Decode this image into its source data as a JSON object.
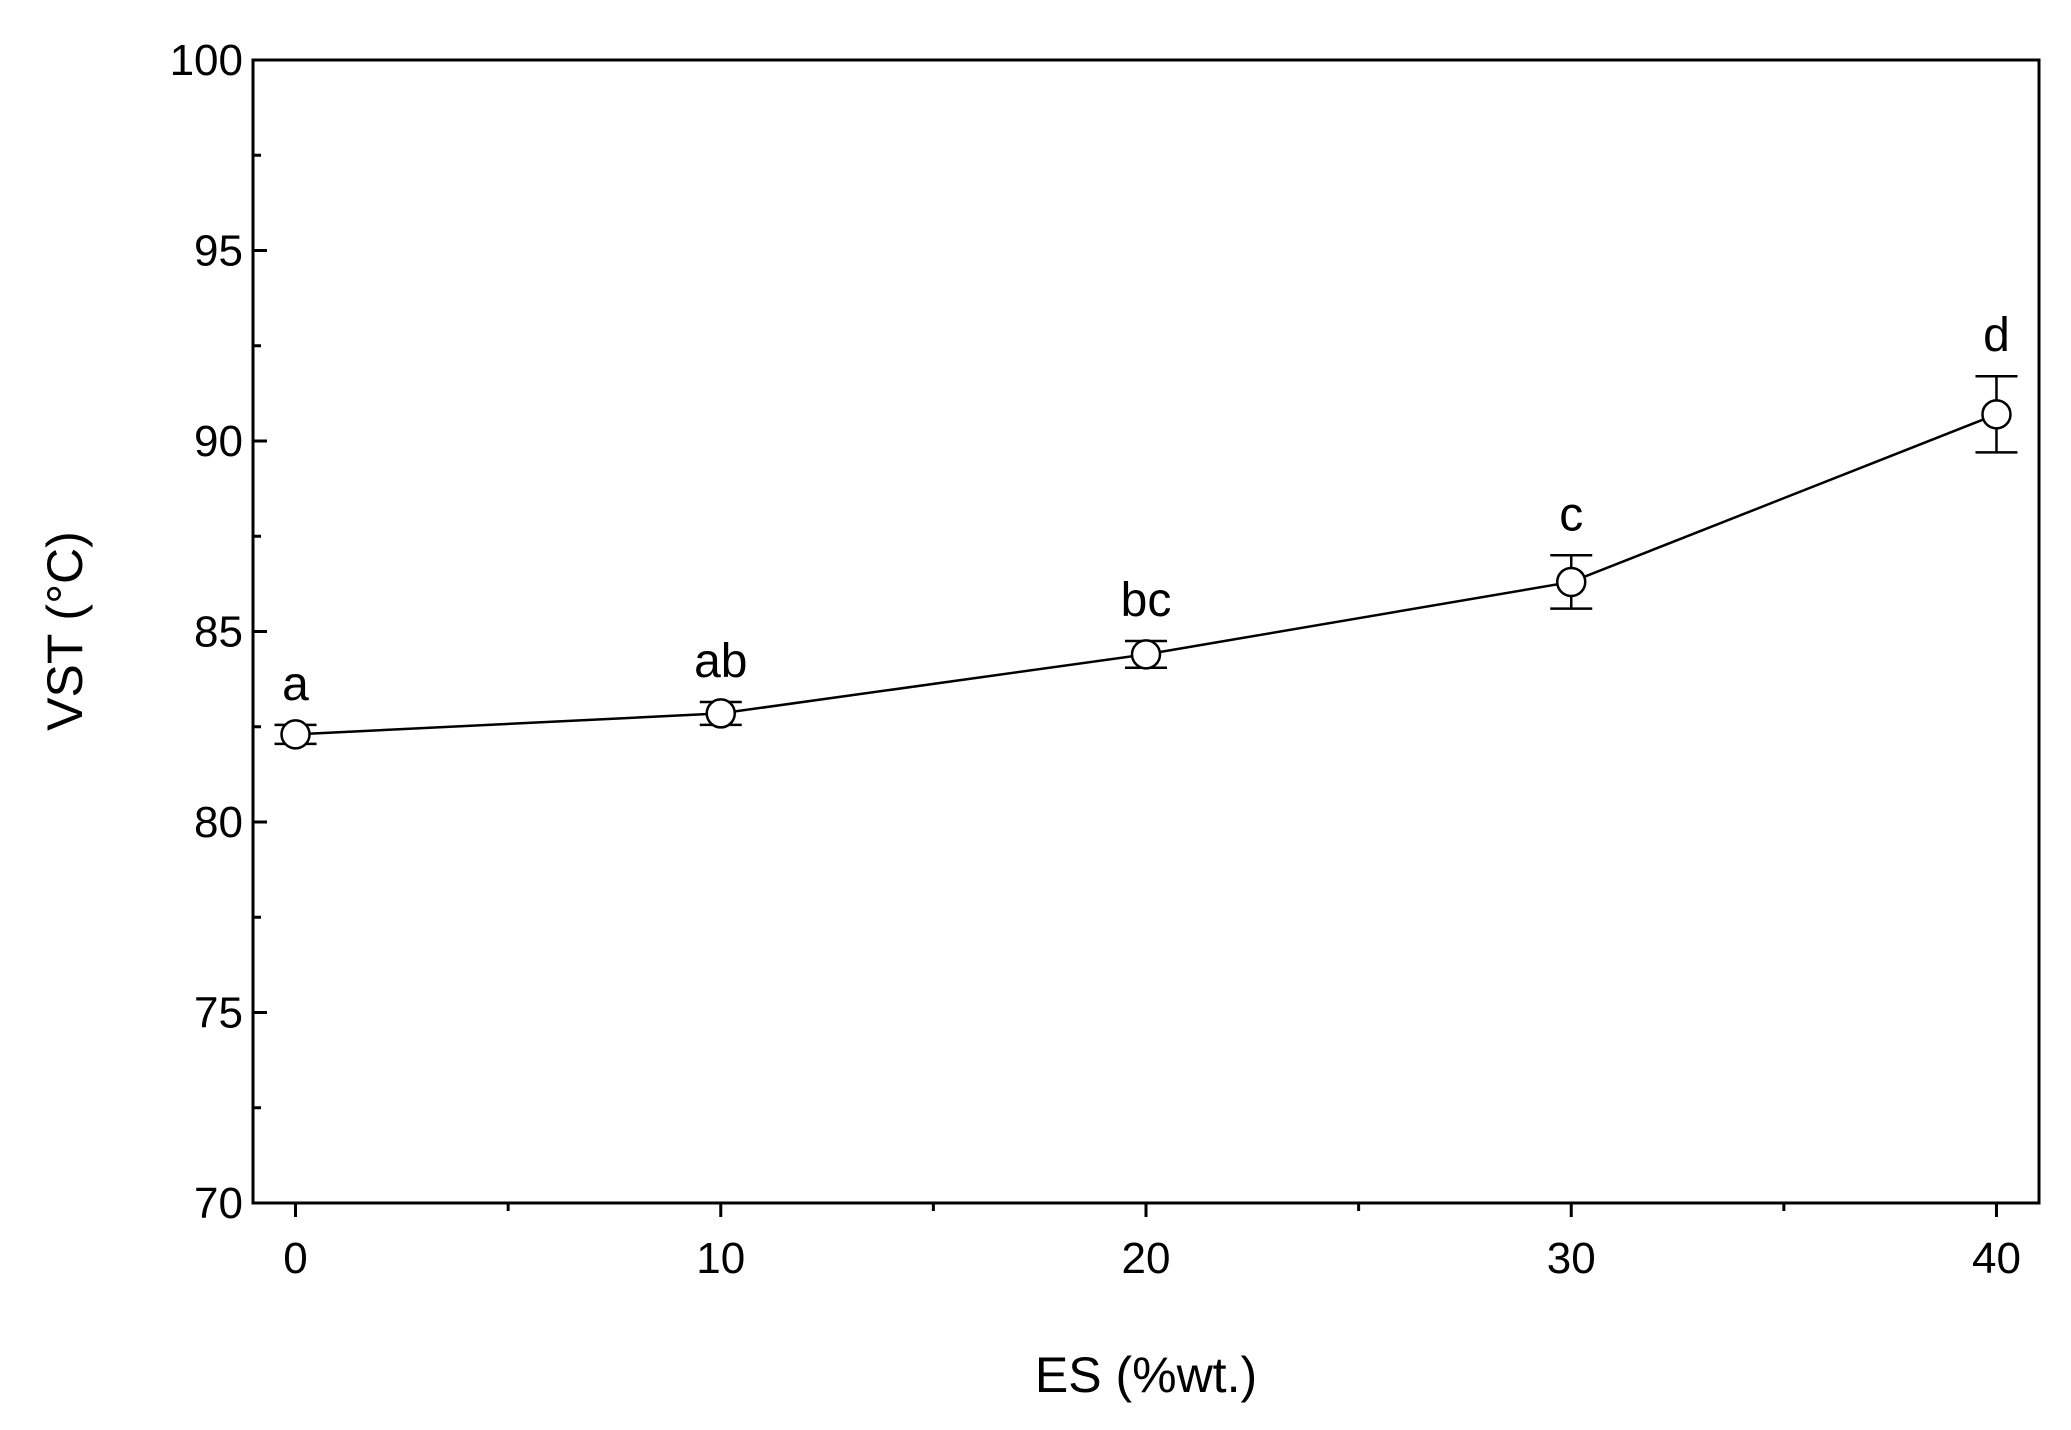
{
  "chart_data": {
    "type": "line",
    "title": "",
    "xlabel": "ES (%wt.)",
    "ylabel": "VST (°C)",
    "xlim": [
      -1,
      41
    ],
    "ylim": [
      70,
      100
    ],
    "x_ticks": [
      0,
      10,
      20,
      30,
      40
    ],
    "x_minor_ticks": [
      5,
      15,
      25,
      35
    ],
    "y_ticks": [
      70,
      75,
      80,
      85,
      90,
      95,
      100
    ],
    "y_minor_step": 2.5,
    "grid": false,
    "legend": "none",
    "marker": "open-circle",
    "line_color": "#000000",
    "series": [
      {
        "x": [
          0,
          10,
          20,
          30,
          40
        ],
        "y": [
          82.3,
          82.85,
          84.4,
          86.3,
          90.7
        ],
        "error": [
          0.25,
          0.3,
          0.35,
          0.7,
          1.0
        ],
        "annotations": [
          "a",
          "ab",
          "bc",
          "c",
          "d"
        ]
      }
    ]
  }
}
